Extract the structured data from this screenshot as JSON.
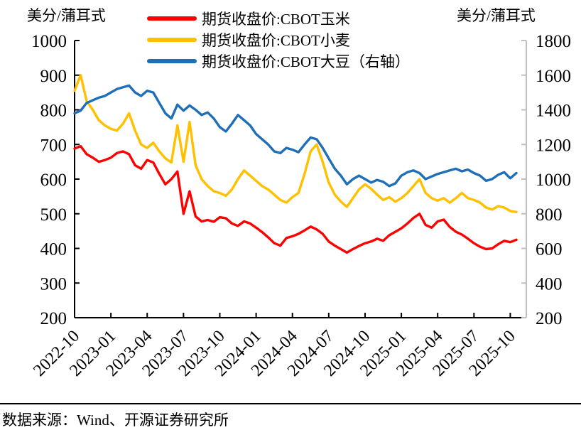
{
  "header": {
    "left_unit": "美分/蒲耳式",
    "right_unit": "美分/蒲耳式"
  },
  "legend": {
    "items": [
      {
        "label": "期货收盘价:CBOT玉米",
        "color": "#FE0000"
      },
      {
        "label": "期货收盘价:CBOT小麦",
        "color": "#FFC000"
      },
      {
        "label": "期货收盘价:CBOT大豆（右轴）",
        "color": "#1F6EB8"
      }
    ]
  },
  "footer": {
    "source": "数据来源：Wind、开源证券研究所"
  },
  "chart_data": {
    "type": "line",
    "grid": false,
    "legend_position": "top",
    "x_tick_labels": [
      "2022-10",
      "2023-01",
      "2023-04",
      "2023-07",
      "2023-10",
      "2024-01",
      "2024-04",
      "2024-07",
      "2024-10",
      "2025-01",
      "2025-04",
      "2025-07",
      "2025-10"
    ],
    "left_axis": {
      "label": "美分/蒲耳式",
      "min": 200,
      "max": 1000,
      "ticks": [
        1000,
        900,
        800,
        700,
        600,
        500,
        400,
        300,
        200
      ],
      "color": "#000000"
    },
    "right_axis": {
      "label": "美分/蒲耳式",
      "min": 200,
      "max": 1800,
      "ticks": [
        1800,
        1600,
        1400,
        1200,
        1000,
        800,
        600,
        400,
        200
      ],
      "color": "#BFBFBF"
    },
    "x": [
      "2022-10-01",
      "2022-10-16",
      "2022-11-01",
      "2022-11-16",
      "2022-12-01",
      "2022-12-16",
      "2023-01-01",
      "2023-01-16",
      "2023-02-01",
      "2023-02-16",
      "2023-03-01",
      "2023-03-16",
      "2023-04-01",
      "2023-04-16",
      "2023-05-01",
      "2023-05-16",
      "2023-06-01",
      "2023-06-16",
      "2023-07-01",
      "2023-07-16",
      "2023-08-01",
      "2023-08-16",
      "2023-09-01",
      "2023-09-16",
      "2023-10-01",
      "2023-10-16",
      "2023-11-01",
      "2023-11-16",
      "2023-12-01",
      "2023-12-16",
      "2024-01-01",
      "2024-01-16",
      "2024-02-01",
      "2024-02-16",
      "2024-03-01",
      "2024-03-16",
      "2024-04-01",
      "2024-04-16",
      "2024-05-01",
      "2024-05-16",
      "2024-06-01",
      "2024-06-16",
      "2024-07-01",
      "2024-07-16",
      "2024-08-01",
      "2024-08-16",
      "2024-09-01",
      "2024-09-16",
      "2024-10-01",
      "2024-10-16",
      "2024-11-01",
      "2024-11-16",
      "2024-12-01",
      "2024-12-16",
      "2025-01-01",
      "2025-01-16",
      "2025-02-01",
      "2025-02-16",
      "2025-03-01",
      "2025-03-16",
      "2025-04-01",
      "2025-04-16",
      "2025-05-01",
      "2025-05-16",
      "2025-06-01",
      "2025-06-16",
      "2025-07-01",
      "2025-07-16",
      "2025-08-01",
      "2025-08-16",
      "2025-09-01",
      "2025-09-16",
      "2025-10-01",
      "2025-10-16"
    ],
    "series": [
      {
        "name": "期货收盘价:CBOT玉米",
        "axis": "left",
        "color": "#FE0000",
        "values": [
          688,
          695,
          672,
          662,
          650,
          655,
          662,
          675,
          680,
          672,
          640,
          630,
          655,
          648,
          615,
          585,
          600,
          622,
          500,
          565,
          492,
          478,
          482,
          477,
          490,
          487,
          472,
          465,
          478,
          472,
          460,
          447,
          432,
          415,
          408,
          430,
          435,
          442,
          452,
          463,
          455,
          442,
          420,
          408,
          398,
          388,
          398,
          407,
          415,
          420,
          428,
          422,
          438,
          448,
          458,
          472,
          488,
          500,
          468,
          460,
          478,
          483,
          462,
          448,
          440,
          428,
          415,
          405,
          398,
          400,
          412,
          422,
          418,
          425
        ]
      },
      {
        "name": "期货收盘价:CBOT小麦",
        "axis": "left",
        "color": "#FFC000",
        "values": [
          855,
          900,
          825,
          800,
          770,
          755,
          745,
          740,
          760,
          790,
          740,
          700,
          690,
          705,
          680,
          660,
          648,
          755,
          650,
          765,
          640,
          600,
          580,
          565,
          560,
          552,
          570,
          600,
          625,
          610,
          595,
          580,
          570,
          555,
          540,
          532,
          548,
          560,
          615,
          680,
          700,
          650,
          590,
          555,
          535,
          520,
          545,
          570,
          585,
          572,
          555,
          540,
          548,
          535,
          545,
          560,
          580,
          600,
          560,
          545,
          538,
          545,
          532,
          545,
          560,
          545,
          540,
          532,
          518,
          512,
          522,
          518,
          508,
          505
        ]
      },
      {
        "name": "期货收盘价:CBOT大豆（右轴）",
        "axis": "right",
        "color": "#1F6EB8",
        "values": [
          1380,
          1395,
          1440,
          1455,
          1470,
          1480,
          1500,
          1520,
          1530,
          1540,
          1500,
          1480,
          1510,
          1500,
          1440,
          1380,
          1350,
          1430,
          1395,
          1425,
          1400,
          1370,
          1385,
          1350,
          1300,
          1275,
          1320,
          1370,
          1340,
          1310,
          1260,
          1230,
          1200,
          1160,
          1150,
          1180,
          1170,
          1155,
          1200,
          1240,
          1230,
          1180,
          1120,
          1060,
          1020,
          970,
          1000,
          1020,
          1000,
          980,
          995,
          985,
          960,
          975,
          1020,
          1040,
          1050,
          1035,
          1000,
          1015,
          1030,
          1040,
          1050,
          1060,
          1045,
          1055,
          1035,
          1020,
          990,
          1000,
          1025,
          1040,
          1005,
          1035
        ]
      }
    ]
  }
}
